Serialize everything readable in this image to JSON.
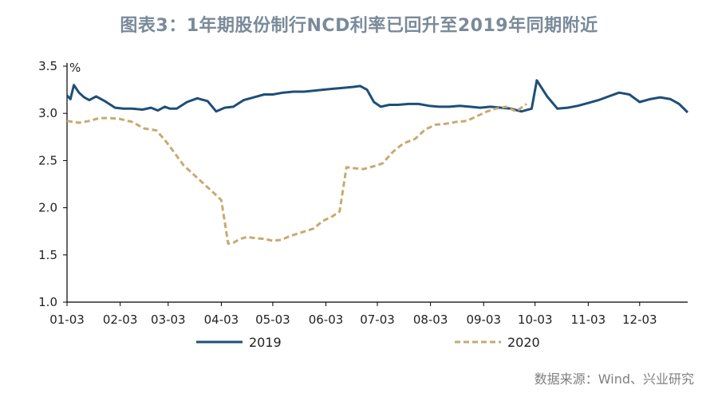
{
  "title": "图表3：1年期股份制行NCD利率已回升至2019年同期附近",
  "source": "数据来源：Wind、兴业研究",
  "colors": {
    "series_2019": "#1f4e79",
    "series_2020": "#c9a971",
    "axis": "#000000"
  },
  "chart_data": {
    "type": "line",
    "ylabel": "%",
    "ylim": [
      1.0,
      3.5
    ],
    "yticks": [
      "1.0",
      "1.5",
      "2.0",
      "2.5",
      "3.0",
      "3.5"
    ],
    "xticks": [
      "01-03",
      "02-03",
      "03-03",
      "04-03",
      "05-03",
      "06-03",
      "07-03",
      "08-03",
      "09-03",
      "10-03",
      "11-03",
      "12-03"
    ],
    "legend_position": "bottom",
    "grid": false,
    "series": [
      {
        "name": "2019",
        "style": "solid",
        "x": [
          "01-03",
          "01-05",
          "01-07",
          "01-10",
          "01-13",
          "01-16",
          "01-20",
          "01-25",
          "01-31",
          "02-05",
          "02-10",
          "02-16",
          "02-21",
          "02-25",
          "03-01",
          "03-04",
          "03-08",
          "03-14",
          "03-20",
          "03-26",
          "03-31",
          "04-05",
          "04-10",
          "04-16",
          "04-22",
          "04-28",
          "05-03",
          "05-09",
          "05-15",
          "05-21",
          "05-27",
          "06-01",
          "06-07",
          "06-13",
          "06-19",
          "06-23",
          "06-27",
          "07-01",
          "07-05",
          "07-10",
          "07-15",
          "07-21",
          "07-27",
          "08-02",
          "08-08",
          "08-14",
          "08-20",
          "08-26",
          "09-01",
          "09-07",
          "09-13",
          "09-19",
          "09-25",
          "10-01",
          "10-04",
          "10-10",
          "10-16",
          "10-22",
          "10-28",
          "11-03",
          "11-09",
          "11-15",
          "11-21",
          "11-27",
          "12-03",
          "12-09",
          "12-15",
          "12-21",
          "12-26",
          "12-31"
        ],
        "values": [
          3.19,
          3.15,
          3.3,
          3.22,
          3.17,
          3.14,
          3.18,
          3.13,
          3.06,
          3.05,
          3.05,
          3.04,
          3.06,
          3.03,
          3.07,
          3.05,
          3.05,
          3.12,
          3.16,
          3.13,
          3.02,
          3.06,
          3.07,
          3.14,
          3.17,
          3.2,
          3.2,
          3.22,
          3.23,
          3.23,
          3.24,
          3.25,
          3.26,
          3.27,
          3.28,
          3.29,
          3.25,
          3.12,
          3.07,
          3.09,
          3.09,
          3.1,
          3.1,
          3.08,
          3.07,
          3.07,
          3.08,
          3.07,
          3.06,
          3.07,
          3.06,
          3.05,
          3.02,
          3.05,
          3.35,
          3.18,
          3.05,
          3.06,
          3.08,
          3.11,
          3.14,
          3.18,
          3.22,
          3.2,
          3.12,
          3.15,
          3.17,
          3.15,
          3.1,
          3.01
        ]
      },
      {
        "name": "2020",
        "style": "dashed",
        "x": [
          "01-03",
          "01-10",
          "01-16",
          "01-22",
          "01-28",
          "02-03",
          "02-10",
          "02-17",
          "02-24",
          "03-01",
          "03-06",
          "03-12",
          "03-18",
          "03-24",
          "03-30",
          "04-03",
          "04-07",
          "04-10",
          "04-14",
          "04-18",
          "04-22",
          "04-28",
          "05-03",
          "05-08",
          "05-13",
          "05-20",
          "05-27",
          "06-01",
          "06-06",
          "06-11",
          "06-15",
          "06-19",
          "06-25",
          "07-01",
          "07-06",
          "07-12",
          "07-18",
          "07-25",
          "07-31",
          "08-06",
          "08-12",
          "08-18",
          "08-24",
          "08-30",
          "09-05",
          "09-10",
          "09-16",
          "09-22",
          "09-28"
        ],
        "values": [
          2.92,
          2.9,
          2.92,
          2.95,
          2.95,
          2.94,
          2.91,
          2.84,
          2.82,
          2.72,
          2.6,
          2.45,
          2.35,
          2.25,
          2.15,
          2.08,
          1.62,
          1.63,
          1.67,
          1.69,
          1.68,
          1.67,
          1.65,
          1.66,
          1.7,
          1.74,
          1.78,
          1.86,
          1.9,
          1.96,
          2.43,
          2.42,
          2.41,
          2.44,
          2.47,
          2.59,
          2.68,
          2.73,
          2.83,
          2.88,
          2.89,
          2.91,
          2.92,
          2.97,
          3.02,
          3.05,
          3.07,
          3.02,
          3.1
        ]
      }
    ]
  }
}
